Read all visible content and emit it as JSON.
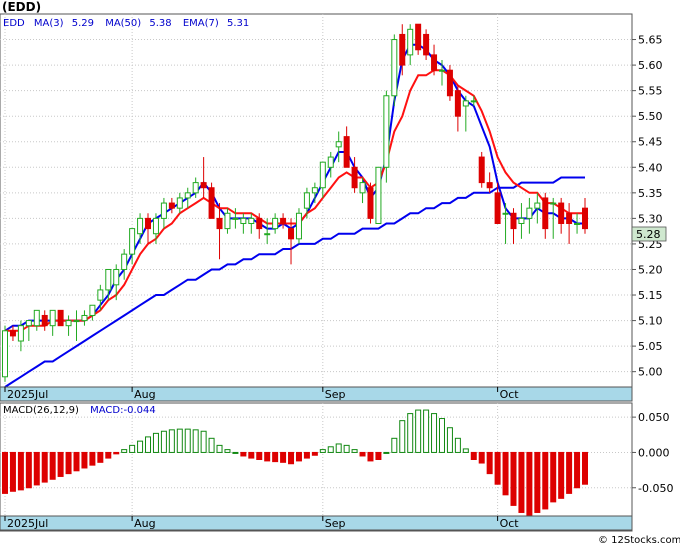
{
  "title": "(EDD)",
  "legend": {
    "symbol": "EDD",
    "ma3_label": "MA(3)",
    "ma3_value": "5.29",
    "ma50_label": "MA(50)",
    "ma50_value": "5.38",
    "ema7_label": "EMA(7)",
    "ema7_value": "5.31"
  },
  "price_badge": "5.28",
  "macd_legend": {
    "label": "MACD(26,12,9)",
    "value_label": "MACD:-0.044"
  },
  "watermark": "© 12Stocks.com",
  "colors": {
    "up_candle": "#22aa22",
    "down_candle": "#dd0000",
    "ma50": "#0000ee",
    "ema7": "#ff1111",
    "macd_pos": "#118811",
    "macd_neg": "#dd0000",
    "axis_band": "#a8d8e8",
    "badge_bg": "#cfe8cf"
  },
  "chart_data": [
    {
      "type": "candlestick",
      "ticker": "EDD",
      "ylim": [
        4.97,
        5.7
      ],
      "y_ticks": [
        "5.65",
        "5.60",
        "5.55",
        "5.50",
        "5.45",
        "5.40",
        "5.35",
        "5.30",
        "5.25",
        "5.20",
        "5.15",
        "5.10",
        "5.05",
        "5.00"
      ],
      "x_labels": [
        "2025Jul",
        "Aug",
        "Sep",
        "Oct"
      ],
      "grid": true,
      "ohlc": [
        [
          4.99,
          5.09,
          4.98,
          5.08
        ],
        [
          5.08,
          5.09,
          5.06,
          5.07
        ],
        [
          5.06,
          5.1,
          5.04,
          5.09
        ],
        [
          5.09,
          5.1,
          5.06,
          5.1
        ],
        [
          5.09,
          5.12,
          5.08,
          5.12
        ],
        [
          5.11,
          5.12,
          5.08,
          5.09
        ],
        [
          5.09,
          5.12,
          5.07,
          5.12
        ],
        [
          5.12,
          5.12,
          5.09,
          5.09
        ],
        [
          5.09,
          5.11,
          5.07,
          5.1
        ],
        [
          5.1,
          5.12,
          5.06,
          5.1
        ],
        [
          5.1,
          5.12,
          5.09,
          5.11
        ],
        [
          5.11,
          5.13,
          5.1,
          5.13
        ],
        [
          5.14,
          5.17,
          5.12,
          5.16
        ],
        [
          5.16,
          5.2,
          5.14,
          5.2
        ],
        [
          5.17,
          5.21,
          5.14,
          5.2
        ],
        [
          5.2,
          5.24,
          5.18,
          5.23
        ],
        [
          5.23,
          5.28,
          5.21,
          5.28
        ],
        [
          5.27,
          5.31,
          5.25,
          5.3
        ],
        [
          5.3,
          5.31,
          5.25,
          5.28
        ],
        [
          5.27,
          5.31,
          5.25,
          5.3
        ],
        [
          5.3,
          5.34,
          5.28,
          5.33
        ],
        [
          5.33,
          5.34,
          5.31,
          5.32
        ],
        [
          5.32,
          5.35,
          5.31,
          5.34
        ],
        [
          5.34,
          5.36,
          5.32,
          5.35
        ],
        [
          5.35,
          5.38,
          5.34,
          5.37
        ],
        [
          5.37,
          5.42,
          5.34,
          5.36
        ],
        [
          5.36,
          5.37,
          5.3,
          5.3
        ],
        [
          5.3,
          5.33,
          5.22,
          5.28
        ],
        [
          5.28,
          5.32,
          5.27,
          5.31
        ],
        [
          5.3,
          5.32,
          5.28,
          5.3
        ],
        [
          5.29,
          5.31,
          5.27,
          5.3
        ],
        [
          5.29,
          5.31,
          5.27,
          5.3
        ],
        [
          5.3,
          5.31,
          5.26,
          5.28
        ],
        [
          5.27,
          5.3,
          5.25,
          5.27
        ],
        [
          5.28,
          5.31,
          5.27,
          5.3
        ],
        [
          5.3,
          5.31,
          5.28,
          5.29
        ],
        [
          5.28,
          5.3,
          5.21,
          5.26
        ],
        [
          5.26,
          5.32,
          5.25,
          5.31
        ],
        [
          5.32,
          5.36,
          5.3,
          5.35
        ],
        [
          5.35,
          5.37,
          5.33,
          5.36
        ],
        [
          5.36,
          5.41,
          5.34,
          5.41
        ],
        [
          5.4,
          5.43,
          5.38,
          5.42
        ],
        [
          5.44,
          5.47,
          5.41,
          5.45
        ],
        [
          5.46,
          5.48,
          5.4,
          5.4
        ],
        [
          5.4,
          5.42,
          5.35,
          5.36
        ],
        [
          5.35,
          5.38,
          5.33,
          5.37
        ],
        [
          5.36,
          5.37,
          5.29,
          5.3
        ],
        [
          5.29,
          5.4,
          5.29,
          5.4
        ],
        [
          5.4,
          5.55,
          5.37,
          5.54
        ],
        [
          5.54,
          5.66,
          5.52,
          5.65
        ],
        [
          5.66,
          5.68,
          5.58,
          5.6
        ],
        [
          5.62,
          5.68,
          5.6,
          5.67
        ],
        [
          5.68,
          5.68,
          5.62,
          5.63
        ],
        [
          5.66,
          5.67,
          5.61,
          5.62
        ],
        [
          5.62,
          5.64,
          5.58,
          5.59
        ],
        [
          5.59,
          5.61,
          5.56,
          5.59
        ],
        [
          5.59,
          5.6,
          5.53,
          5.54
        ],
        [
          5.55,
          5.56,
          5.47,
          5.5
        ],
        [
          5.52,
          5.54,
          5.47,
          5.53
        ],
        [
          5.53,
          5.54,
          5.52,
          5.53
        ],
        [
          5.42,
          5.43,
          5.36,
          5.37
        ],
        [
          5.37,
          5.39,
          5.35,
          5.36
        ],
        [
          5.35,
          5.37,
          5.29,
          5.29
        ],
        [
          5.31,
          5.33,
          5.25,
          5.31
        ],
        [
          5.31,
          5.32,
          5.25,
          5.28
        ],
        [
          5.29,
          5.33,
          5.26,
          5.3
        ],
        [
          5.3,
          5.34,
          5.27,
          5.32
        ],
        [
          5.32,
          5.35,
          5.29,
          5.33
        ],
        [
          5.34,
          5.35,
          5.26,
          5.28
        ],
        [
          5.33,
          5.34,
          5.26,
          5.33
        ],
        [
          5.33,
          5.34,
          5.27,
          5.29
        ],
        [
          5.31,
          5.33,
          5.25,
          5.29
        ],
        [
          5.29,
          5.31,
          5.27,
          5.29
        ],
        [
          5.32,
          5.34,
          5.27,
          5.28
        ]
      ],
      "ma3": [
        5.08,
        5.09,
        5.09,
        5.1,
        5.1,
        5.1,
        5.1,
        5.1,
        5.1,
        5.1,
        5.1,
        5.11,
        5.13,
        5.15,
        5.18,
        5.2,
        5.23,
        5.26,
        5.29,
        5.3,
        5.31,
        5.32,
        5.33,
        5.34,
        5.35,
        5.37,
        5.35,
        5.32,
        5.3,
        5.3,
        5.3,
        5.3,
        5.29,
        5.28,
        5.28,
        5.29,
        5.28,
        5.29,
        5.31,
        5.34,
        5.37,
        5.4,
        5.43,
        5.43,
        5.4,
        5.38,
        5.34,
        5.36,
        5.42,
        5.53,
        5.61,
        5.64,
        5.64,
        5.63,
        5.61,
        5.6,
        5.58,
        5.55,
        5.53,
        5.52,
        5.48,
        5.44,
        5.37,
        5.32,
        5.3,
        5.3,
        5.3,
        5.32,
        5.31,
        5.31,
        5.3,
        5.3,
        5.29,
        5.29
      ],
      "ema7": [
        5.08,
        5.08,
        5.08,
        5.09,
        5.09,
        5.09,
        5.1,
        5.1,
        5.1,
        5.1,
        5.1,
        5.11,
        5.12,
        5.14,
        5.15,
        5.17,
        5.2,
        5.23,
        5.25,
        5.26,
        5.28,
        5.29,
        5.31,
        5.32,
        5.33,
        5.34,
        5.33,
        5.32,
        5.32,
        5.31,
        5.31,
        5.31,
        5.3,
        5.29,
        5.29,
        5.29,
        5.29,
        5.29,
        5.31,
        5.32,
        5.34,
        5.36,
        5.38,
        5.39,
        5.38,
        5.38,
        5.36,
        5.37,
        5.41,
        5.47,
        5.5,
        5.55,
        5.58,
        5.58,
        5.59,
        5.59,
        5.58,
        5.56,
        5.55,
        5.54,
        5.51,
        5.47,
        5.42,
        5.39,
        5.37,
        5.36,
        5.35,
        5.35,
        5.33,
        5.33,
        5.32,
        5.31,
        5.31,
        5.31
      ],
      "ma50": [
        4.97,
        4.98,
        4.99,
        5.0,
        5.01,
        5.02,
        5.02,
        5.03,
        5.04,
        5.05,
        5.06,
        5.07,
        5.08,
        5.09,
        5.1,
        5.11,
        5.12,
        5.13,
        5.14,
        5.15,
        5.15,
        5.16,
        5.17,
        5.18,
        5.18,
        5.19,
        5.2,
        5.2,
        5.21,
        5.21,
        5.22,
        5.22,
        5.23,
        5.23,
        5.23,
        5.24,
        5.24,
        5.25,
        5.25,
        5.25,
        5.26,
        5.26,
        5.27,
        5.27,
        5.27,
        5.28,
        5.28,
        5.28,
        5.29,
        5.29,
        5.3,
        5.31,
        5.31,
        5.32,
        5.32,
        5.33,
        5.33,
        5.34,
        5.34,
        5.35,
        5.35,
        5.35,
        5.36,
        5.36,
        5.36,
        5.37,
        5.37,
        5.37,
        5.37,
        5.37,
        5.38,
        5.38,
        5.38,
        5.38
      ]
    },
    {
      "type": "bar",
      "label": "MACD(26,12,9)",
      "ylim": [
        -0.09,
        0.07
      ],
      "y_ticks": [
        "0.050",
        "0.000",
        "-0.050"
      ],
      "x_labels": [
        "2025Jul",
        "Aug",
        "Sep",
        "Oct"
      ],
      "values": [
        -0.058,
        -0.055,
        -0.053,
        -0.05,
        -0.046,
        -0.042,
        -0.038,
        -0.034,
        -0.03,
        -0.026,
        -0.022,
        -0.018,
        -0.014,
        -0.008,
        -0.002,
        0.004,
        0.01,
        0.016,
        0.022,
        0.027,
        0.03,
        0.032,
        0.033,
        0.033,
        0.032,
        0.03,
        0.02,
        0.01,
        0.004,
        0.0,
        -0.005,
        -0.008,
        -0.01,
        -0.012,
        -0.013,
        -0.014,
        -0.016,
        -0.012,
        -0.008,
        -0.004,
        0.004,
        0.008,
        0.012,
        0.01,
        0.004,
        -0.005,
        -0.012,
        -0.01,
        0.0,
        0.02,
        0.045,
        0.055,
        0.06,
        0.06,
        0.055,
        0.048,
        0.035,
        0.02,
        0.005,
        -0.01,
        -0.015,
        -0.03,
        -0.045,
        -0.06,
        -0.075,
        -0.085,
        -0.09,
        -0.085,
        -0.08,
        -0.07,
        -0.065,
        -0.058,
        -0.05,
        -0.045
      ]
    }
  ]
}
